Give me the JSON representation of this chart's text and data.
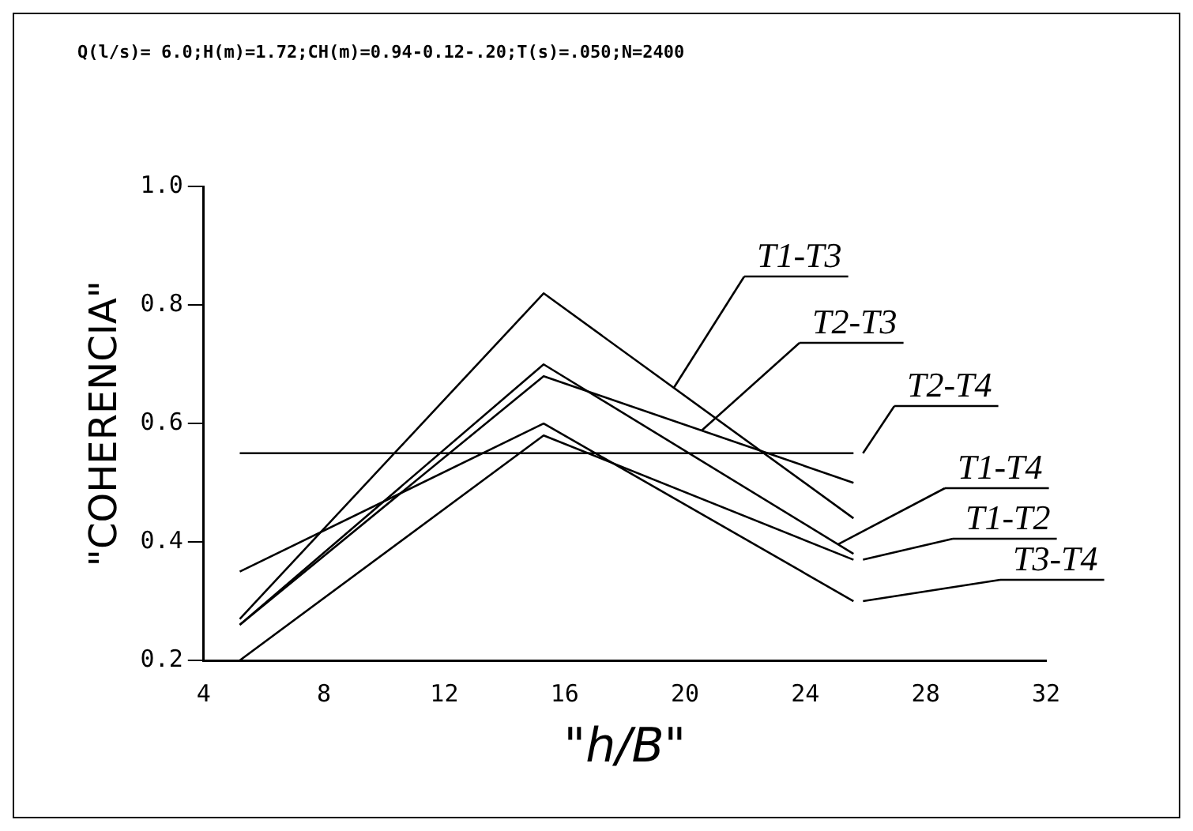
{
  "chart_data": {
    "type": "line",
    "title": "Q(l/s)= 6.0;H(m)=1.72;CH(m)=0.94-0.12-.20;T(s)=.050;N=2400",
    "xlabel": "\"h/B\"",
    "ylabel": "\"COHERENCIA\"",
    "x": [
      5.2,
      15.3,
      25.6
    ],
    "xlim": [
      4,
      32
    ],
    "xticks": [
      4,
      8,
      12,
      16,
      20,
      24,
      28,
      32
    ],
    "ylim": [
      0.2,
      1.0
    ],
    "yticks": [
      0.2,
      0.4,
      0.6,
      0.8,
      {
        "value": 1.0,
        "label": "1.0"
      }
    ],
    "grid": false,
    "legend": "right",
    "series": [
      {
        "name": "T1-T3",
        "color": "#000000",
        "values": [
          0.27,
          0.82,
          0.44
        ]
      },
      {
        "name": "T2-T3",
        "color": "#000000",
        "values": [
          0.26,
          0.68,
          0.5
        ]
      },
      {
        "name": "T2-T4",
        "color": "#000000",
        "values": [
          0.55,
          0.55,
          0.55
        ]
      },
      {
        "name": "T1-T4",
        "color": "#000000",
        "values": [
          0.26,
          0.7,
          0.38
        ]
      },
      {
        "name": "T1-T2",
        "color": "#000000",
        "values": [
          0.2,
          0.58,
          0.37
        ]
      },
      {
        "name": "T3-T4",
        "color": "#000000",
        "values": [
          0.35,
          0.6,
          0.3
        ]
      }
    ]
  }
}
